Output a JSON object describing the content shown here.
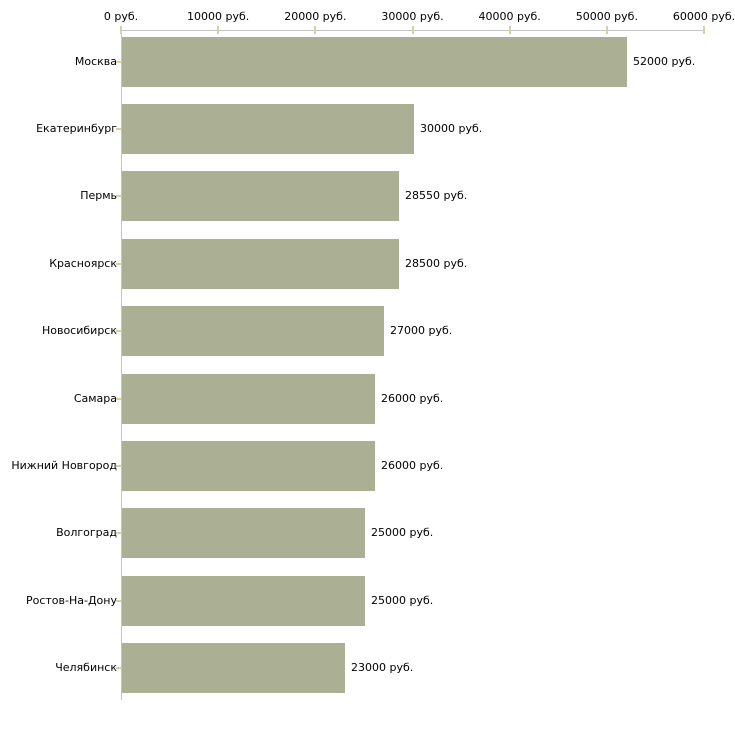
{
  "chart_data": {
    "type": "bar",
    "orientation": "horizontal",
    "title": "",
    "categories": [
      "Москва",
      "Екатеринбург",
      "Пермь",
      "Красноярск",
      "Новосибирск",
      "Самара",
      "Нижний Новгород",
      "Волгоград",
      "Ростов-На-Дону",
      "Челябинск"
    ],
    "values": [
      52000,
      30000,
      28550,
      28500,
      27000,
      26000,
      26000,
      25000,
      25000,
      23000
    ],
    "value_labels": [
      "52000 руб.",
      "30000 руб.",
      "28550 руб.",
      "28500 руб.",
      "27000 руб.",
      "26000 руб.",
      "26000 руб.",
      "25000 руб.",
      "25000 руб.",
      "23000 руб."
    ],
    "x_axis": {
      "position": "top",
      "range": [
        0,
        60000
      ],
      "tick_values": [
        0,
        10000,
        20000,
        30000,
        40000,
        50000,
        60000
      ],
      "tick_labels": [
        "0 руб.",
        "10000 руб.",
        "20000 руб.",
        "30000 руб.",
        "40000 руб.",
        "50000 руб.",
        "60000 руб."
      ]
    },
    "legend": false,
    "grid": false,
    "colors": {
      "bar": "#abb095",
      "axis_line": "#c4c4c4",
      "tick_mark": "#d6d1a4",
      "text": "#000000",
      "background": "#ffffff"
    }
  }
}
